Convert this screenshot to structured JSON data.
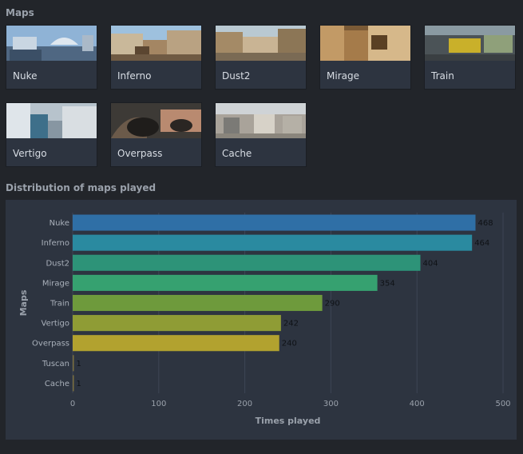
{
  "maps_section": {
    "title": "Maps",
    "maps": [
      {
        "name": "Nuke",
        "thumb": "nuke"
      },
      {
        "name": "Inferno",
        "thumb": "inferno"
      },
      {
        "name": "Dust2",
        "thumb": "dust2"
      },
      {
        "name": "Mirage",
        "thumb": "mirage"
      },
      {
        "name": "Train",
        "thumb": "train"
      },
      {
        "name": "Vertigo",
        "thumb": "vertigo"
      },
      {
        "name": "Overpass",
        "thumb": "overpass"
      },
      {
        "name": "Cache",
        "thumb": "cache"
      }
    ]
  },
  "distribution_section": {
    "title": "Distribution of maps played"
  },
  "chart_data": {
    "type": "bar",
    "orientation": "horizontal",
    "categories": [
      "Nuke",
      "Inferno",
      "Dust2",
      "Mirage",
      "Train",
      "Vertigo",
      "Overpass",
      "Tuscan",
      "Cache"
    ],
    "values": [
      468,
      464,
      404,
      354,
      290,
      242,
      240,
      1,
      1
    ],
    "colors": [
      "#2f6fa6",
      "#2a8aa0",
      "#2d9378",
      "#36a170",
      "#6e9a3c",
      "#8f9c35",
      "#b2a22f",
      "#7a6f40",
      "#7a6f40"
    ],
    "xlabel": "Times played",
    "ylabel": "Maps",
    "xlim": [
      0,
      500
    ],
    "xticks": [
      0,
      100,
      200,
      300,
      400,
      500
    ],
    "grid": true,
    "data_labels": true
  }
}
